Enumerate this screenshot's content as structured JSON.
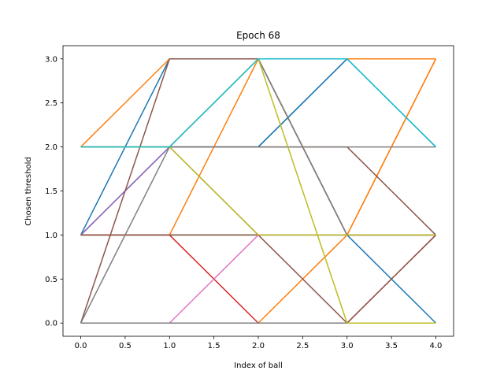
{
  "chart_data": {
    "type": "line",
    "title": "Epoch 68",
    "xlabel": "Index of ball",
    "ylabel": "Chosen threshold",
    "x": [
      0,
      1,
      2,
      3,
      4
    ],
    "xlim": [
      -0.2,
      4.2
    ],
    "ylim": [
      -0.15,
      3.15
    ],
    "xticks": [
      "0.0",
      "0.5",
      "1.0",
      "1.5",
      "2.0",
      "2.5",
      "3.0",
      "3.5",
      "4.0"
    ],
    "yticks": [
      "0.0",
      "0.5",
      "1.0",
      "1.5",
      "2.0",
      "2.5",
      "3.0"
    ],
    "grid": false,
    "legend": false,
    "series": [
      {
        "color": "#1f77b4",
        "values": [
          1,
          2,
          2,
          3,
          2
        ]
      },
      {
        "color": "#1f77b4",
        "values": [
          1,
          3,
          3,
          1,
          0
        ]
      },
      {
        "color": "#1f77b4",
        "values": [
          2,
          2,
          2,
          3,
          3
        ]
      },
      {
        "color": "#ff7f0e",
        "values": [
          2,
          3,
          3,
          3,
          3
        ]
      },
      {
        "color": "#ff7f0e",
        "values": [
          1,
          1,
          3,
          1,
          3
        ]
      },
      {
        "color": "#ff7f0e",
        "values": [
          0,
          0,
          0,
          1,
          3
        ]
      },
      {
        "color": "#2ca02c",
        "values": [
          1,
          1,
          1,
          1,
          1
        ]
      },
      {
        "color": "#d62728",
        "values": [
          1,
          1,
          0,
          0,
          1
        ]
      },
      {
        "color": "#9467bd",
        "values": [
          1,
          2,
          1,
          1,
          1
        ]
      },
      {
        "color": "#8c564b",
        "values": [
          1,
          1,
          1,
          0,
          1
        ]
      },
      {
        "color": "#8c564b",
        "values": [
          2,
          2,
          2,
          2,
          1
        ]
      },
      {
        "color": "#8c564b",
        "values": [
          0,
          3,
          3,
          1,
          1
        ]
      },
      {
        "color": "#e377c2",
        "values": [
          0,
          0,
          1,
          1,
          1
        ]
      },
      {
        "color": "#7f7f7f",
        "values": [
          0,
          2,
          3,
          1,
          1
        ]
      },
      {
        "color": "#7f7f7f",
        "values": [
          0,
          0,
          0,
          0,
          0
        ]
      },
      {
        "color": "#7f7f7f",
        "values": [
          2,
          2,
          2,
          2,
          2
        ]
      },
      {
        "color": "#bcbd22",
        "values": [
          2,
          2,
          1,
          1,
          1
        ]
      },
      {
        "color": "#bcbd22",
        "values": [
          2,
          2,
          3,
          0,
          0
        ]
      },
      {
        "color": "#17becf",
        "values": [
          2,
          2,
          3,
          3,
          2
        ]
      }
    ]
  }
}
